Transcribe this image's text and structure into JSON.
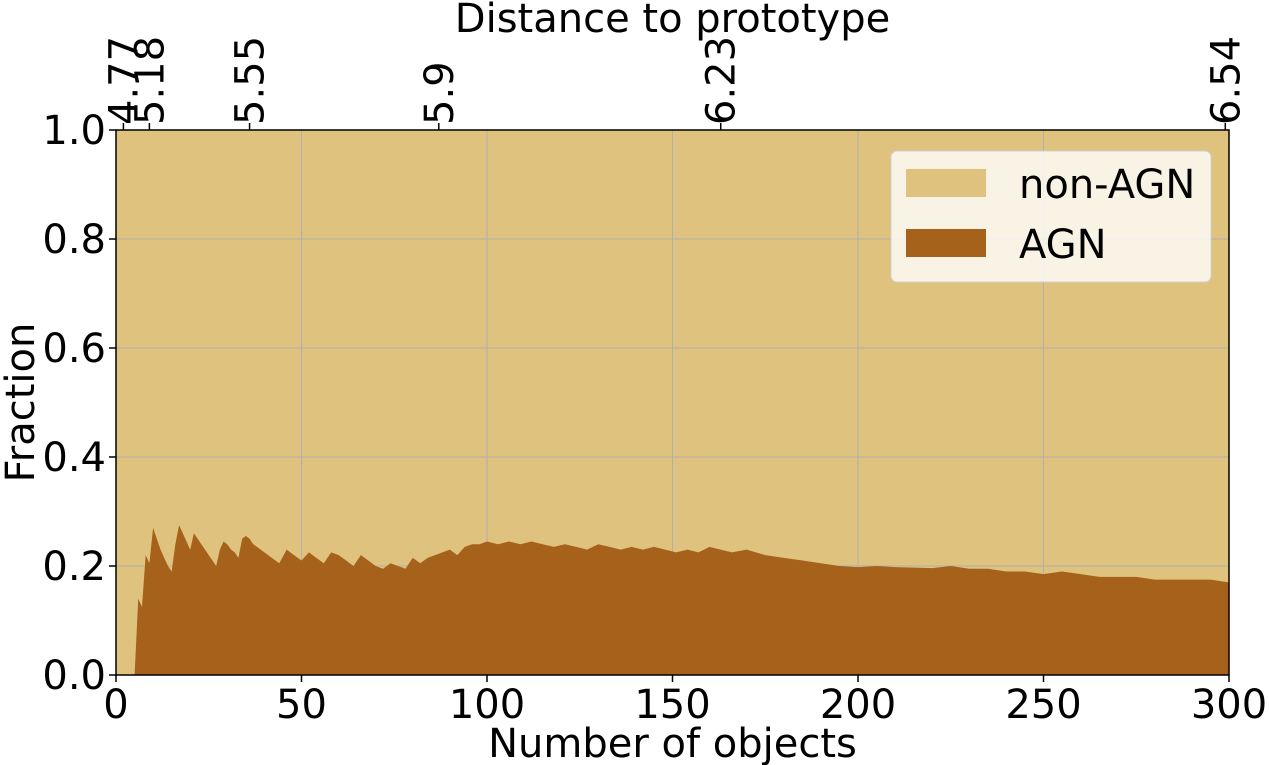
{
  "chart_data": {
    "type": "area",
    "xlabel": "Number of objects",
    "ylabel": "Fraction",
    "top_xlabel": "Distance to prototype",
    "xlim": [
      0,
      300
    ],
    "ylim": [
      0,
      1.0
    ],
    "grid": true,
    "legend_position": "top-right",
    "x_ticks": [
      {
        "value": 0,
        "label": "0"
      },
      {
        "value": 50,
        "label": "50"
      },
      {
        "value": 100,
        "label": "100"
      },
      {
        "value": 150,
        "label": "150"
      },
      {
        "value": 200,
        "label": "200"
      },
      {
        "value": 250,
        "label": "250"
      },
      {
        "value": 300,
        "label": "300"
      }
    ],
    "y_ticks": [
      {
        "value": 0.0,
        "label": "0.0"
      },
      {
        "value": 0.2,
        "label": "0.2"
      },
      {
        "value": 0.4,
        "label": "0.4"
      },
      {
        "value": 0.6,
        "label": "0.6"
      },
      {
        "value": 0.8,
        "label": "0.8"
      },
      {
        "value": 1.0,
        "label": "1.0"
      }
    ],
    "top_ticks": [
      {
        "value": 2,
        "label": "4.77"
      },
      {
        "value": 9,
        "label": "5.18"
      },
      {
        "value": 36,
        "label": "5.55"
      },
      {
        "value": 87,
        "label": "5.9"
      },
      {
        "value": 163,
        "label": "6.23"
      },
      {
        "value": 299,
        "label": "6.54"
      }
    ],
    "series": [
      {
        "name": "non-AGN",
        "color": "#dfc27d"
      },
      {
        "name": "AGN",
        "color": "#a6611a"
      }
    ],
    "agn_fraction": {
      "x": [
        0,
        5,
        5.01,
        6,
        7,
        8,
        9,
        10,
        11,
        12,
        13,
        14,
        15,
        16,
        17,
        18,
        19,
        20,
        21,
        22,
        23,
        24,
        25,
        26,
        27,
        28,
        29,
        30,
        31,
        32,
        33,
        34,
        35,
        36,
        37,
        38,
        40,
        42,
        44,
        46,
        48,
        50,
        52,
        54,
        56,
        58,
        60,
        62,
        64,
        66,
        68,
        70,
        72,
        74,
        76,
        78,
        80,
        82,
        84,
        86,
        88,
        90,
        92,
        94,
        96,
        98,
        100,
        103,
        106,
        109,
        112,
        115,
        118,
        121,
        124,
        127,
        130,
        133,
        136,
        139,
        142,
        145,
        148,
        151,
        154,
        157,
        160,
        163,
        166,
        170,
        175,
        180,
        185,
        190,
        195,
        200,
        205,
        210,
        215,
        220,
        225,
        230,
        235,
        240,
        245,
        250,
        255,
        260,
        265,
        270,
        275,
        280,
        285,
        290,
        295,
        300
      ],
      "y": [
        0,
        0,
        0,
        0.14,
        0.125,
        0.22,
        0.205,
        0.27,
        0.25,
        0.23,
        0.215,
        0.2,
        0.19,
        0.24,
        0.275,
        0.26,
        0.245,
        0.23,
        0.26,
        0.25,
        0.24,
        0.23,
        0.22,
        0.21,
        0.2,
        0.23,
        0.245,
        0.24,
        0.23,
        0.225,
        0.215,
        0.25,
        0.255,
        0.25,
        0.24,
        0.235,
        0.225,
        0.215,
        0.205,
        0.23,
        0.22,
        0.21,
        0.225,
        0.215,
        0.205,
        0.225,
        0.22,
        0.21,
        0.2,
        0.22,
        0.21,
        0.2,
        0.195,
        0.205,
        0.2,
        0.195,
        0.215,
        0.205,
        0.215,
        0.22,
        0.225,
        0.23,
        0.22,
        0.235,
        0.24,
        0.24,
        0.245,
        0.24,
        0.245,
        0.24,
        0.245,
        0.24,
        0.235,
        0.24,
        0.235,
        0.23,
        0.24,
        0.235,
        0.23,
        0.235,
        0.23,
        0.235,
        0.23,
        0.225,
        0.23,
        0.225,
        0.235,
        0.23,
        0.225,
        0.23,
        0.22,
        0.215,
        0.21,
        0.205,
        0.2,
        0.198,
        0.2,
        0.198,
        0.197,
        0.196,
        0.2,
        0.195,
        0.195,
        0.19,
        0.19,
        0.185,
        0.19,
        0.185,
        0.18,
        0.18,
        0.18,
        0.175,
        0.175,
        0.175,
        0.175,
        0.17
      ]
    }
  }
}
